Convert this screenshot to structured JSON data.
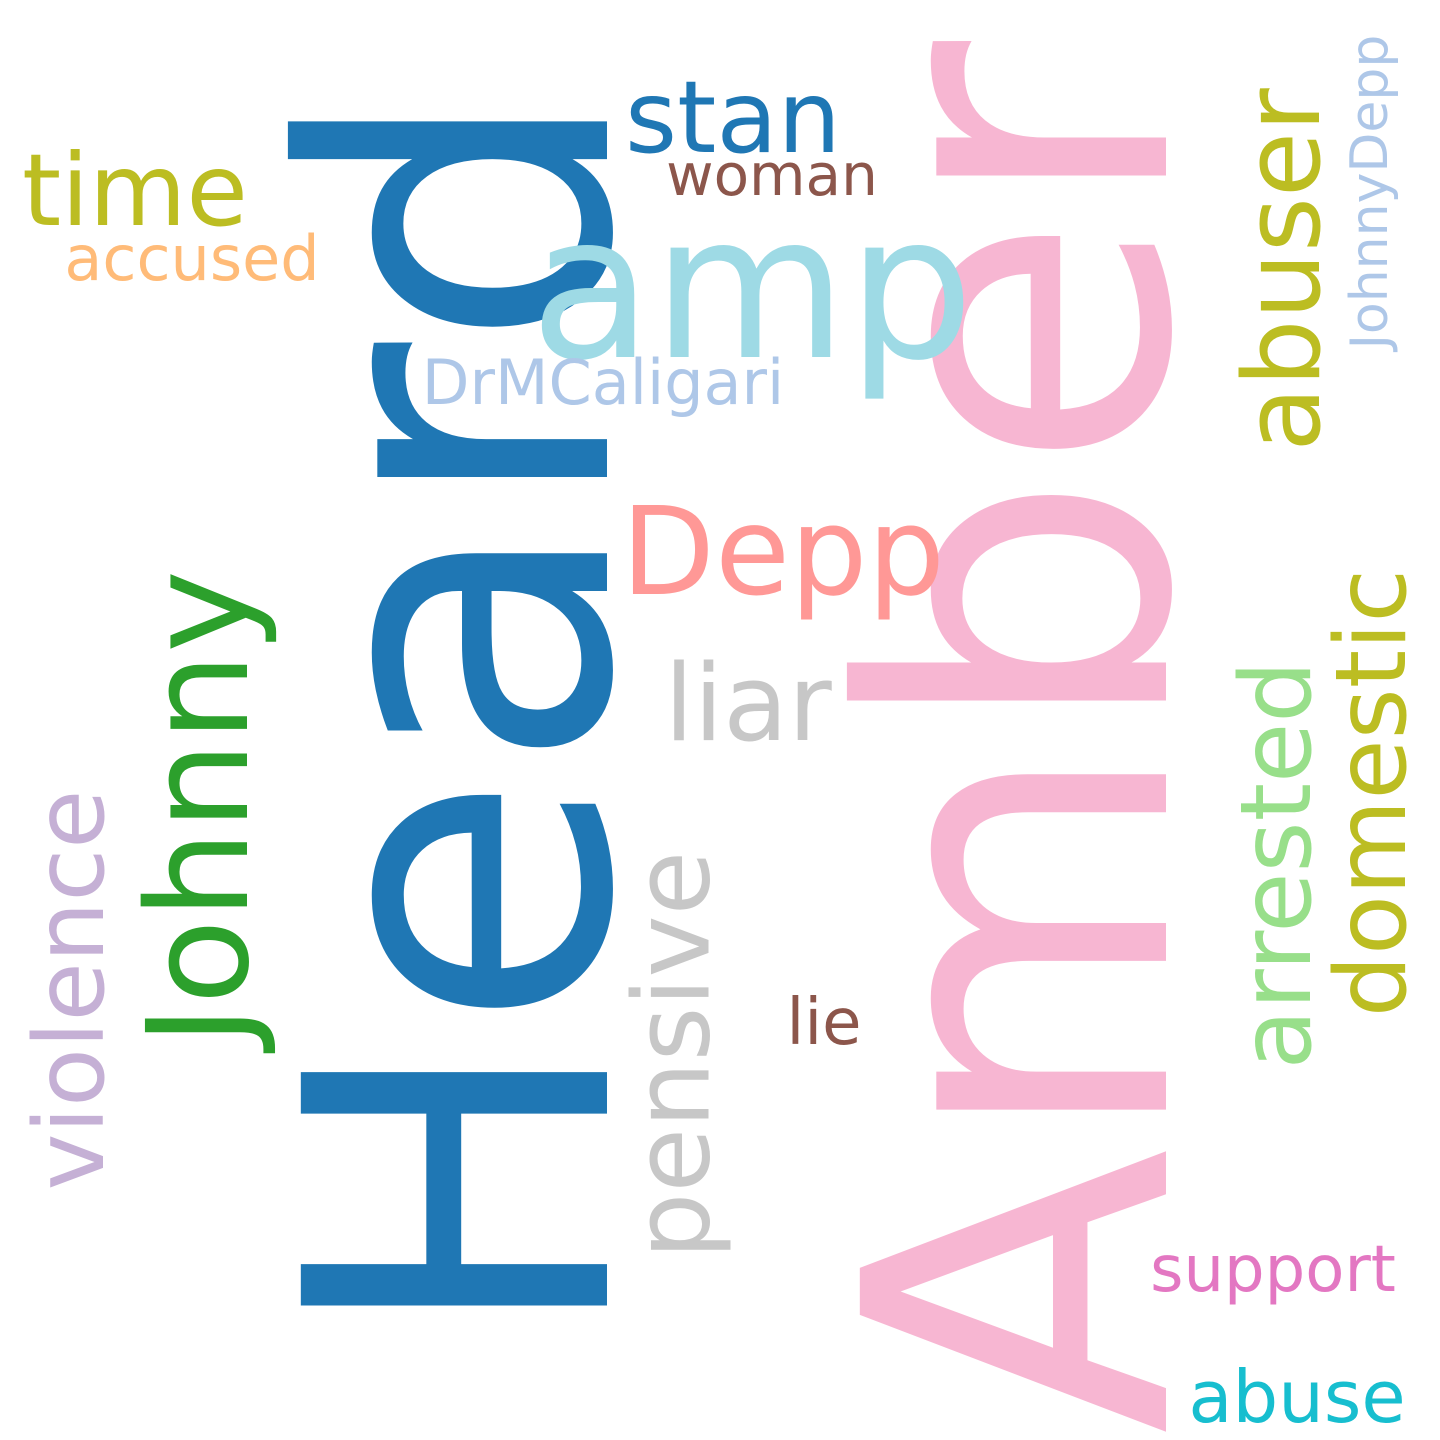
{
  "words": {
    "amber": {
      "text": "Amber",
      "color": "#f7b6d2"
    },
    "heard": {
      "text": "Heard",
      "color": "#1f77b4"
    },
    "amp": {
      "text": "amp",
      "color": "#9edae5"
    },
    "stan": {
      "text": "stan",
      "color": "#1f77b4"
    },
    "woman": {
      "text": "woman",
      "color": "#8c564b"
    },
    "time": {
      "text": "time",
      "color": "#bcbd22"
    },
    "accused": {
      "text": "accused",
      "color": "#ffbb78"
    },
    "drmcaligari": {
      "text": "DrMCaligari",
      "color": "#aec7e8"
    },
    "depp": {
      "text": "Depp",
      "color": "#ff9896"
    },
    "liar": {
      "text": "liar",
      "color": "#c7c7c7"
    },
    "lie": {
      "text": "lie",
      "color": "#8c564b"
    },
    "support": {
      "text": "support",
      "color": "#e377c2"
    },
    "abuse": {
      "text": "abuse",
      "color": "#17becf"
    },
    "johnny": {
      "text": "Johnny",
      "color": "#2ca02c"
    },
    "violence": {
      "text": "violence",
      "color": "#c5b0d5"
    },
    "pensive": {
      "text": "pensive",
      "color": "#c7c7c7"
    },
    "arrested": {
      "text": "arrested",
      "color": "#98df8a"
    },
    "domestic": {
      "text": "domestic",
      "color": "#bcbd22"
    },
    "abuser": {
      "text": "abuser",
      "color": "#bcbd22"
    },
    "johnnydepp": {
      "text": "JohnnyDepp",
      "color": "#aec7e8"
    }
  }
}
